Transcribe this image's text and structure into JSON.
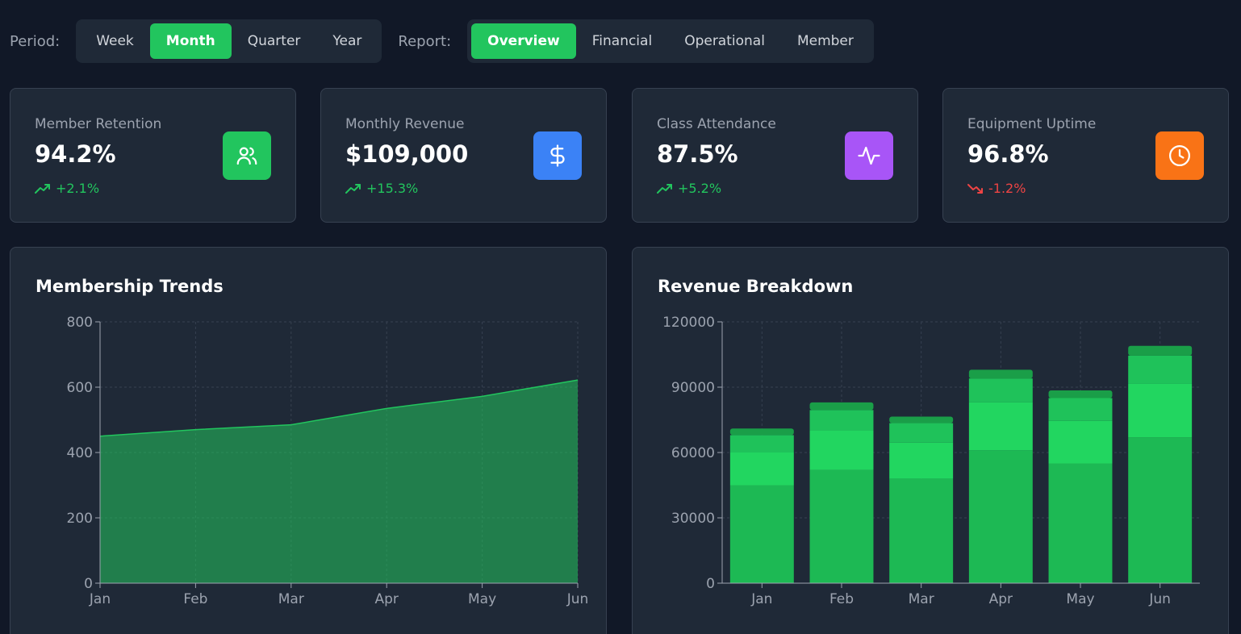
{
  "filters": {
    "period_label": "Period:",
    "period_options": [
      "Week",
      "Month",
      "Quarter",
      "Year"
    ],
    "period_selected": "Month",
    "report_label": "Report:",
    "report_options": [
      "Overview",
      "Financial",
      "Operational",
      "Member"
    ],
    "report_selected": "Overview"
  },
  "kpis": [
    {
      "title": "Member Retention",
      "value": "94.2%",
      "delta": "+2.1%",
      "trend": "up",
      "icon": "users-icon",
      "color": "#22c55e"
    },
    {
      "title": "Monthly Revenue",
      "value": "$109,000",
      "delta": "+15.3%",
      "trend": "up",
      "icon": "dollar-icon",
      "color": "#3b82f6"
    },
    {
      "title": "Class Attendance",
      "value": "87.5%",
      "delta": "+5.2%",
      "trend": "up",
      "icon": "activity-icon",
      "color": "#a855f7"
    },
    {
      "title": "Equipment Uptime",
      "value": "96.8%",
      "delta": "-1.2%",
      "trend": "down",
      "icon": "clock-icon",
      "color": "#f97316"
    }
  ],
  "colors": {
    "up": "#22c55e",
    "down": "#ef4444"
  },
  "chart_data": [
    {
      "type": "area",
      "title": "Membership Trends",
      "categories": [
        "Jan",
        "Feb",
        "Mar",
        "Apr",
        "May",
        "Jun"
      ],
      "series": [
        {
          "values": [
            450,
            470,
            485,
            535,
            572,
            622
          ],
          "color": "#22c55e"
        }
      ],
      "ylim": [
        0,
        800
      ],
      "yticks": [
        0,
        200,
        400,
        600,
        800
      ],
      "grid": true
    },
    {
      "type": "bar",
      "stacked": true,
      "title": "Revenue Breakdown",
      "categories": [
        "Jan",
        "Feb",
        "Mar",
        "Apr",
        "May",
        "Jun"
      ],
      "series": [
        {
          "values": [
            45000,
            52000,
            48000,
            61000,
            55000,
            67000
          ],
          "color": "#1db954"
        },
        {
          "values": [
            15000,
            18000,
            16500,
            22000,
            19500,
            24500
          ],
          "color": "#22d660"
        },
        {
          "values": [
            8000,
            9500,
            9000,
            11000,
            10500,
            13000
          ],
          "color": "#1fc25a"
        },
        {
          "values": [
            3000,
            3500,
            3000,
            4000,
            3500,
            4500
          ],
          "color": "#1a9e48"
        }
      ],
      "ylim": [
        0,
        120000
      ],
      "yticks": [
        0,
        30000,
        60000,
        90000,
        120000
      ],
      "grid": true
    }
  ]
}
